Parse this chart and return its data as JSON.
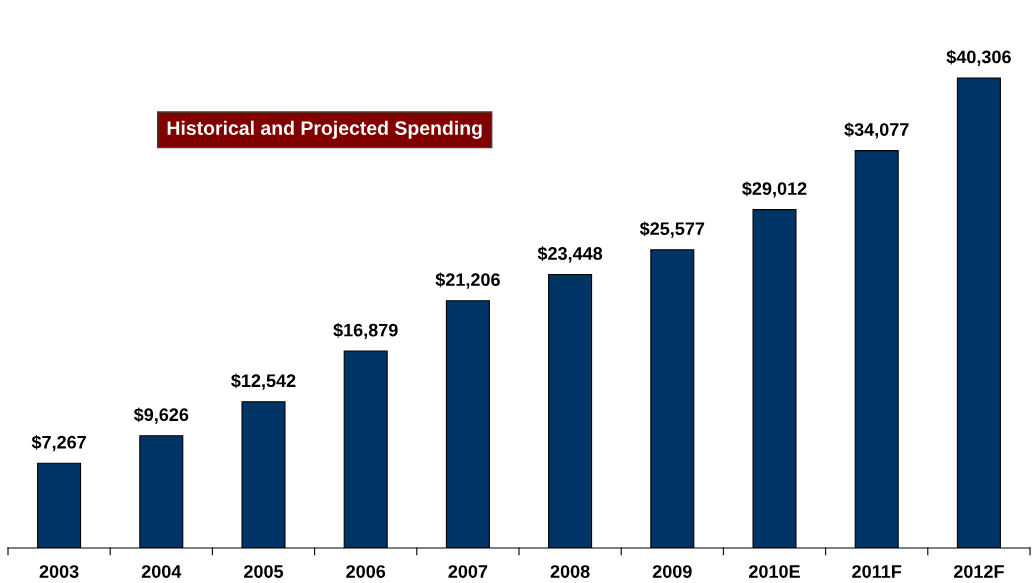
{
  "chart_data": {
    "type": "bar",
    "title": "Historical and Projected Spending",
    "categories": [
      "2003",
      "2004",
      "2005",
      "2006",
      "2007",
      "2008",
      "2009",
      "2010E",
      "2011F",
      "2012F"
    ],
    "values": [
      7267,
      9626,
      12542,
      16879,
      21206,
      23448,
      25577,
      29012,
      34077,
      40306
    ],
    "value_labels": [
      "$7,267",
      "$9,626",
      "$12,542",
      "$16,879",
      "$21,206",
      "$23,448",
      "$25,577",
      "$29,012",
      "$34,077",
      "$40,306"
    ],
    "color": "#003366",
    "grid": false,
    "legend": false
  }
}
